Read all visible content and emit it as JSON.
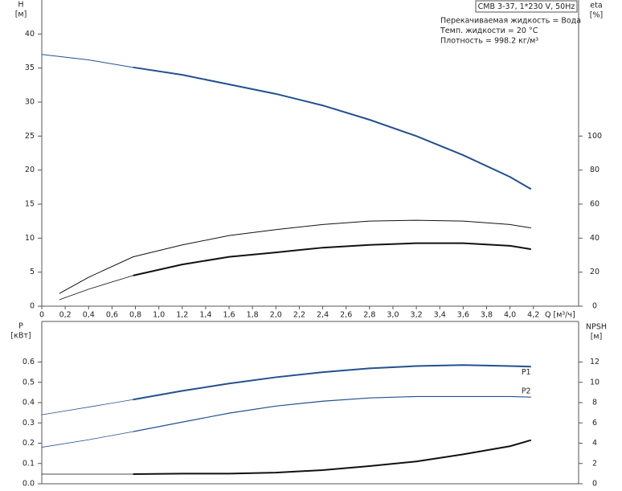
{
  "chart_data": [
    {
      "type": "line",
      "title": "CMB 3-37, 1*230 V, 50Hz",
      "notes": [
        "Перекачиваемая жидкость = Вода",
        "Темп. жидкости = 20 °C",
        "Плотность = 998.2 кг/м³"
      ],
      "xlabel": "Q [м³/ч]",
      "ylabel": "H",
      "ylabel_unit": "[м]",
      "y2label": "eta",
      "y2label_unit": "[%]",
      "xlim": [
        0,
        4.6
      ],
      "xticks": [
        0,
        {
          "value": 0.2,
          "label": "0,2"
        },
        {
          "value": 0.4,
          "label": "0,4"
        },
        {
          "value": 0.6,
          "label": "0,6"
        },
        {
          "value": 0.8,
          "label": "0,8"
        },
        {
          "value": 1,
          "label": "1,0"
        },
        {
          "value": 1.2,
          "label": "1,2"
        },
        {
          "value": 1.4,
          "label": "1,4"
        },
        {
          "value": 1.6,
          "label": "1,6"
        },
        {
          "value": 1.8,
          "label": "1,8"
        },
        {
          "value": 2,
          "label": "2,0"
        },
        {
          "value": 2.2,
          "label": "2,2"
        },
        {
          "value": 2.4,
          "label": "2,4"
        },
        {
          "value": 2.6,
          "label": "2,6"
        },
        {
          "value": 2.8,
          "label": "2,8"
        },
        {
          "value": 3,
          "label": "3,0"
        },
        {
          "value": 3.2,
          "label": "3,2"
        },
        {
          "value": 3.4,
          "label": "3,4"
        },
        {
          "value": 3.6,
          "label": "3,6"
        },
        {
          "value": 3.8,
          "label": "3,8"
        },
        {
          "value": 4,
          "label": "4,0"
        },
        {
          "value": 4.2,
          "label": "4,2"
        }
      ],
      "ylim": [
        0,
        45
      ],
      "yticks": [
        0,
        5,
        10,
        15,
        20,
        25,
        30,
        35,
        40
      ],
      "y2lim": [
        0,
        180
      ],
      "y2ticks": [
        0,
        20,
        40,
        60,
        80,
        100
      ],
      "series": [
        {
          "color": "#23508f",
          "line_width": 1,
          "x": [
            0,
            0.4,
            0.78
          ],
          "values": [
            37.0,
            36.2,
            35.1
          ]
        },
        {
          "color": "#23508f",
          "line_width": 2,
          "x": [
            0.78,
            1.2,
            1.6,
            2.0,
            2.4,
            2.8,
            3.2,
            3.6,
            4.0,
            4.18
          ],
          "values": [
            35.1,
            34.0,
            32.6,
            31.2,
            29.5,
            27.4,
            25.0,
            22.2,
            19.0,
            17.2
          ]
        },
        {
          "color": "#111111",
          "line_width": 1,
          "axis": "y2",
          "x": [
            0.15,
            0.4,
            0.78,
            1.2,
            1.6,
            2.0,
            2.4,
            2.8,
            3.2,
            3.6,
            4.0,
            4.18
          ],
          "values": [
            7.5,
            17,
            29,
            36,
            41.5,
            45,
            48,
            50,
            50.5,
            50,
            48,
            46
          ]
        },
        {
          "color": "#111111",
          "line_width": 0.8,
          "axis": "y2",
          "x": [
            0.15,
            0.4,
            0.78
          ],
          "values": [
            3.8,
            10,
            18
          ]
        },
        {
          "color": "#111111",
          "line_width": 2,
          "axis": "y2",
          "x": [
            0.78,
            1.2,
            1.6,
            2.0,
            2.4,
            2.8,
            3.2,
            3.6,
            4.0,
            4.18
          ],
          "values": [
            18,
            24.5,
            29,
            31.6,
            34.4,
            36,
            37,
            37,
            35.5,
            33.5
          ]
        }
      ]
    },
    {
      "type": "line",
      "ylabel": "P",
      "ylabel_unit": "[кВт]",
      "y2label": "NPSH",
      "y2label_unit": "[м]",
      "xlim": [
        0,
        4.6
      ],
      "ylim": [
        0,
        0.8
      ],
      "yticks": [
        {
          "value": 0,
          "label": "0.0"
        },
        0.1,
        0.2,
        0.3,
        0.4,
        0.5,
        0.6
      ],
      "y2lim": [
        0,
        16
      ],
      "y2ticks": [
        0,
        2,
        4,
        6,
        8,
        10,
        12
      ],
      "series": [
        {
          "color": "#23508f",
          "line_width": 0.8,
          "x": [
            0,
            0.4,
            0.78
          ],
          "values": [
            0.34,
            0.378,
            0.415
          ]
        },
        {
          "name": "P1",
          "color": "#23508f",
          "line_width": 2,
          "x": [
            0.78,
            1.2,
            1.6,
            2.0,
            2.4,
            2.8,
            3.2,
            3.6,
            4.0,
            4.18
          ],
          "values": [
            0.415,
            0.458,
            0.494,
            0.525,
            0.55,
            0.569,
            0.58,
            0.585,
            0.58,
            0.577
          ]
        },
        {
          "color": "#23508f",
          "line_width": 0.8,
          "x": [
            0,
            0.4,
            0.78
          ],
          "values": [
            0.18,
            0.217,
            0.257
          ]
        },
        {
          "name": "P2",
          "color": "#23508f",
          "line_width": 1.2,
          "x": [
            0.78,
            1.2,
            1.6,
            2.0,
            2.4,
            2.8,
            3.2,
            3.6,
            4.0,
            4.18
          ],
          "values": [
            0.257,
            0.304,
            0.348,
            0.383,
            0.407,
            0.423,
            0.43,
            0.43,
            0.43,
            0.427
          ]
        },
        {
          "color": "#111111",
          "line_width": 0.8,
          "axis": "y2",
          "x": [
            0,
            0.4,
            0.78
          ],
          "values": [
            0.95,
            0.95,
            0.95
          ]
        },
        {
          "color": "#111111",
          "line_width": 2,
          "axis": "y2",
          "x": [
            0.78,
            1.2,
            1.6,
            2.0,
            2.4,
            2.8,
            3.2,
            3.6,
            4.0,
            4.18
          ],
          "values": [
            0.95,
            1.0,
            1.0,
            1.1,
            1.35,
            1.74,
            2.2,
            2.9,
            3.7,
            4.3
          ]
        }
      ]
    }
  ]
}
